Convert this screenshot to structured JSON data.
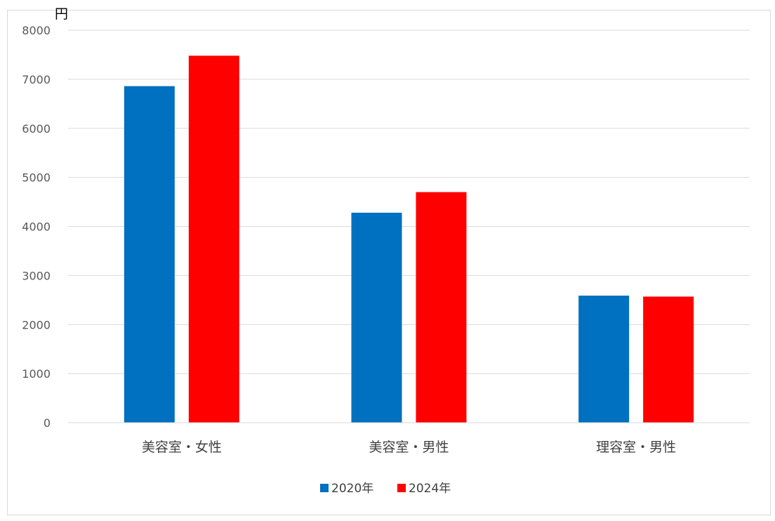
{
  "chart_data": {
    "type": "bar",
    "unit_label": "円",
    "categories": [
      "美容室・女性",
      "美容室・男性",
      "理容室・男性"
    ],
    "series": [
      {
        "name": "2020年",
        "color": "#0070c0",
        "values": [
          6860,
          4280,
          2590
        ]
      },
      {
        "name": "2024年",
        "color": "#ff0000",
        "values": [
          7480,
          4700,
          2570
        ]
      }
    ],
    "ylim": [
      0,
      8000
    ],
    "yticks": [
      0,
      1000,
      2000,
      3000,
      4000,
      5000,
      6000,
      7000,
      8000
    ],
    "grid": true,
    "legend_position": "bottom"
  }
}
